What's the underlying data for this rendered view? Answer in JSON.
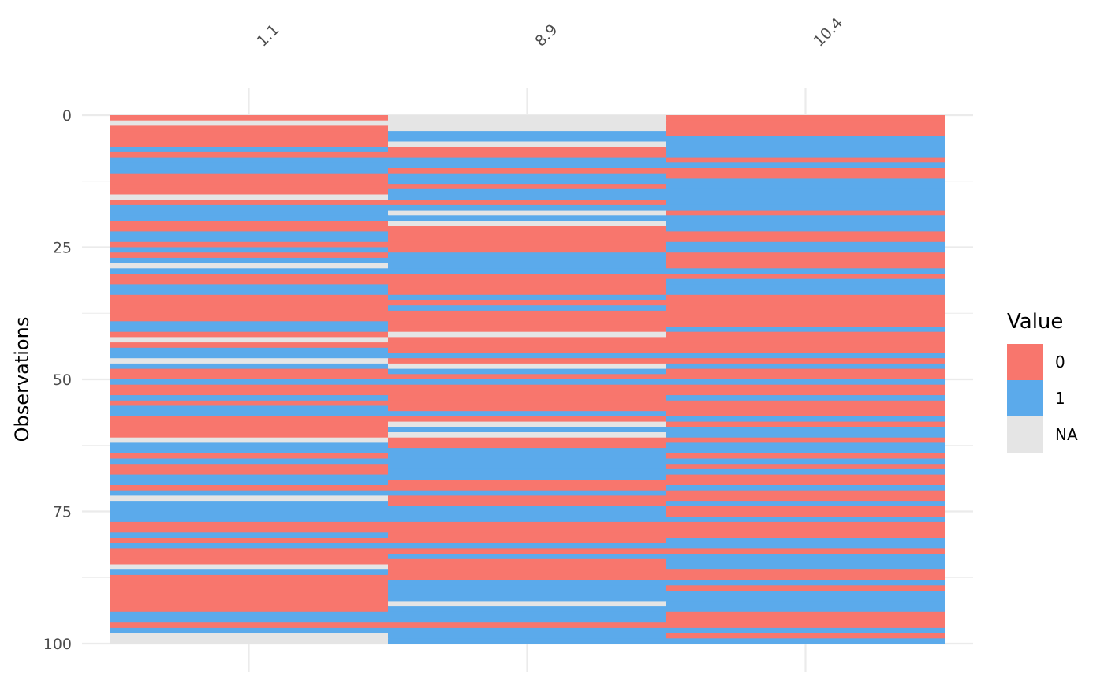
{
  "chart_data": {
    "type": "heatmap",
    "columns": [
      "1.1",
      "8.9",
      "10.4"
    ],
    "ylabel": "Observations",
    "y_ticks": [
      0,
      25,
      50,
      75,
      100
    ],
    "y_range": [
      0,
      100
    ],
    "n_observations": 100,
    "legend": {
      "title": "Value",
      "items": [
        {
          "label": "0",
          "color": "#F8766D"
        },
        {
          "label": "1",
          "color": "#5BAAEB"
        },
        {
          "label": "NA",
          "color": "#E5E5E5"
        }
      ]
    },
    "grid": true,
    "legend_position": "right",
    "values": [
      [
        0,
        "NA",
        0
      ],
      [
        "NA",
        "NA",
        0
      ],
      [
        0,
        "NA",
        0
      ],
      [
        0,
        1,
        0
      ],
      [
        0,
        1,
        1
      ],
      [
        0,
        "NA",
        1
      ],
      [
        1,
        0,
        1
      ],
      [
        0,
        0,
        1
      ],
      [
        1,
        1,
        0
      ],
      [
        1,
        1,
        1
      ],
      [
        1,
        0,
        0
      ],
      [
        0,
        1,
        0
      ],
      [
        0,
        1,
        1
      ],
      [
        0,
        0,
        1
      ],
      [
        0,
        1,
        1
      ],
      [
        "NA",
        1,
        1
      ],
      [
        0,
        0,
        1
      ],
      [
        1,
        1,
        1
      ],
      [
        1,
        "NA",
        0
      ],
      [
        1,
        1,
        1
      ],
      [
        0,
        "NA",
        1
      ],
      [
        0,
        0,
        1
      ],
      [
        1,
        0,
        0
      ],
      [
        1,
        0,
        0
      ],
      [
        0,
        0,
        1
      ],
      [
        1,
        0,
        1
      ],
      [
        0,
        1,
        0
      ],
      [
        1,
        1,
        0
      ],
      [
        "NA",
        1,
        0
      ],
      [
        1,
        1,
        1
      ],
      [
        0,
        0,
        0
      ],
      [
        0,
        0,
        1
      ],
      [
        1,
        0,
        1
      ],
      [
        1,
        0,
        1
      ],
      [
        0,
        1,
        0
      ],
      [
        0,
        0,
        0
      ],
      [
        0,
        1,
        0
      ],
      [
        0,
        0,
        0
      ],
      [
        0,
        0,
        0
      ],
      [
        1,
        0,
        0
      ],
      [
        1,
        0,
        1
      ],
      [
        0,
        "NA",
        0
      ],
      [
        "NA",
        0,
        0
      ],
      [
        0,
        0,
        0
      ],
      [
        1,
        0,
        0
      ],
      [
        1,
        1,
        1
      ],
      [
        "NA",
        0,
        0
      ],
      [
        1,
        "NA",
        1
      ],
      [
        0,
        1,
        0
      ],
      [
        0,
        0,
        0
      ],
      [
        1,
        1,
        1
      ],
      [
        0,
        0,
        0
      ],
      [
        0,
        0,
        0
      ],
      [
        1,
        0,
        1
      ],
      [
        0,
        0,
        0
      ],
      [
        1,
        0,
        0
      ],
      [
        1,
        1,
        0
      ],
      [
        0,
        0,
        1
      ],
      [
        0,
        "NA",
        0
      ],
      [
        0,
        1,
        1
      ],
      [
        0,
        "NA",
        1
      ],
      [
        "NA",
        0,
        0
      ],
      [
        1,
        0,
        1
      ],
      [
        1,
        1,
        1
      ],
      [
        0,
        1,
        0
      ],
      [
        1,
        1,
        1
      ],
      [
        0,
        1,
        0
      ],
      [
        0,
        1,
        1
      ],
      [
        1,
        1,
        0
      ],
      [
        1,
        0,
        0
      ],
      [
        0,
        0,
        1
      ],
      [
        1,
        1,
        0
      ],
      [
        "NA",
        0,
        0
      ],
      [
        1,
        0,
        1
      ],
      [
        1,
        1,
        0
      ],
      [
        1,
        1,
        0
      ],
      [
        1,
        1,
        1
      ],
      [
        0,
        0,
        0
      ],
      [
        0,
        0,
        0
      ],
      [
        1,
        0,
        0
      ],
      [
        0,
        0,
        1
      ],
      [
        1,
        1,
        1
      ],
      [
        0,
        0,
        0
      ],
      [
        0,
        1,
        1
      ],
      [
        0,
        0,
        1
      ],
      [
        "NA",
        0,
        1
      ],
      [
        1,
        0,
        0
      ],
      [
        0,
        0,
        0
      ],
      [
        0,
        1,
        1
      ],
      [
        0,
        1,
        0
      ],
      [
        0,
        1,
        1
      ],
      [
        0,
        1,
        1
      ],
      [
        0,
        "NA",
        1
      ],
      [
        0,
        1,
        1
      ],
      [
        1,
        1,
        0
      ],
      [
        1,
        1,
        0
      ],
      [
        0,
        0,
        0
      ],
      [
        1,
        1,
        1
      ],
      [
        "NA",
        1,
        0
      ],
      [
        "NA",
        1,
        1
      ]
    ]
  }
}
